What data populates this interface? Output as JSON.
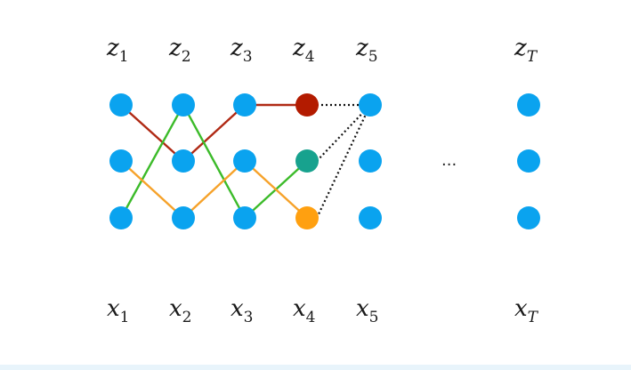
{
  "top_labels": [
    {
      "base": "z",
      "sub": "1"
    },
    {
      "base": "z",
      "sub": "2"
    },
    {
      "base": "z",
      "sub": "3"
    },
    {
      "base": "z",
      "sub": "4"
    },
    {
      "base": "z",
      "sub": "5"
    },
    {
      "base": "z",
      "sub": "T"
    }
  ],
  "bottom_labels": [
    {
      "base": "x",
      "sub": "1"
    },
    {
      "base": "x",
      "sub": "2"
    },
    {
      "base": "x",
      "sub": "3"
    },
    {
      "base": "x",
      "sub": "4"
    },
    {
      "base": "x",
      "sub": "5"
    },
    {
      "base": "x",
      "sub": "T"
    }
  ],
  "ellipsis": "...",
  "colors": {
    "node": "#0aa3ef",
    "red": "#b31b00",
    "teal": "#17a28e",
    "orange": "#ffa010",
    "path_red": "#b02a15",
    "path_green": "#3cbb2a",
    "path_orange": "#f6a22a",
    "dotted": "#111111"
  },
  "nodes": [
    {
      "col": 1,
      "state": 1,
      "color": "node"
    },
    {
      "col": 1,
      "state": 2,
      "color": "node"
    },
    {
      "col": 1,
      "state": 3,
      "color": "node"
    },
    {
      "col": 2,
      "state": 1,
      "color": "node"
    },
    {
      "col": 2,
      "state": 2,
      "color": "node"
    },
    {
      "col": 2,
      "state": 3,
      "color": "node"
    },
    {
      "col": 3,
      "state": 1,
      "color": "node"
    },
    {
      "col": 3,
      "state": 2,
      "color": "node"
    },
    {
      "col": 3,
      "state": 3,
      "color": "node"
    },
    {
      "col": 4,
      "state": 1,
      "color": "red"
    },
    {
      "col": 4,
      "state": 2,
      "color": "teal"
    },
    {
      "col": 4,
      "state": 3,
      "color": "orange"
    },
    {
      "col": 5,
      "state": 1,
      "color": "node"
    },
    {
      "col": 5,
      "state": 2,
      "color": "node"
    },
    {
      "col": 5,
      "state": 3,
      "color": "node"
    },
    {
      "col": "T",
      "state": 1,
      "color": "node"
    },
    {
      "col": "T",
      "state": 2,
      "color": "node"
    },
    {
      "col": "T",
      "state": 3,
      "color": "node"
    }
  ],
  "paths": [
    {
      "color": "path_red",
      "states": [
        1,
        2,
        1,
        1
      ]
    },
    {
      "color": "path_green",
      "states": [
        3,
        1,
        3,
        2
      ]
    },
    {
      "color": "path_orange",
      "states": [
        2,
        3,
        2,
        3
      ]
    }
  ],
  "dotted_edges": [
    {
      "from": {
        "col": 4,
        "state": 1
      },
      "to": {
        "col": 5,
        "state": 1
      }
    },
    {
      "from": {
        "col": 4,
        "state": 2
      },
      "to": {
        "col": 5,
        "state": 1
      }
    },
    {
      "from": {
        "col": 4,
        "state": 3
      },
      "to": {
        "col": 5,
        "state": 1
      }
    }
  ]
}
